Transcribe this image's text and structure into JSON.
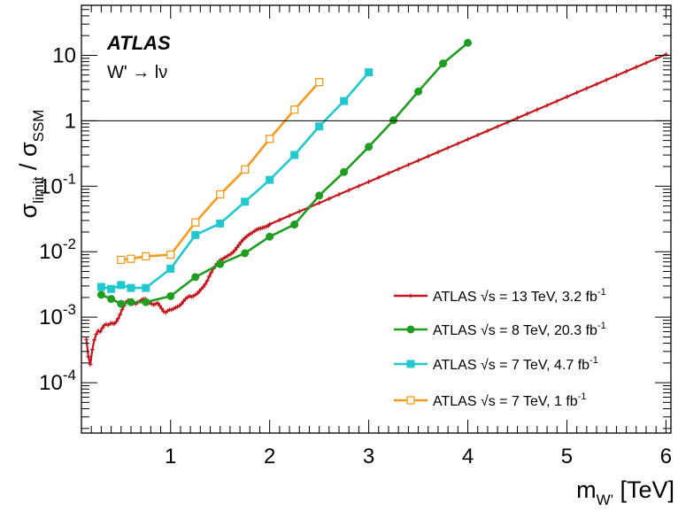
{
  "chart_data": {
    "type": "line",
    "xlabel": "m_W' [TeV]",
    "ylabel": "σ_limit / σ_SSM",
    "xlim": [
      0.1,
      6.05
    ],
    "ylim": [
      1.7e-05,
      58
    ],
    "yscale": "log",
    "grid": false,
    "legend_position": "lower-right",
    "annotations": {
      "experiment": "ATLAS",
      "process": "W' → lν"
    },
    "x_tick_labels": [
      "1",
      "2",
      "3",
      "4",
      "5",
      "6"
    ],
    "y_tick_labels": [
      {
        "mantissa": "10",
        "exp": "-4",
        "value": 0.0001
      },
      {
        "mantissa": "10",
        "exp": "-3",
        "value": 0.001
      },
      {
        "mantissa": "10",
        "exp": "-2",
        "value": 0.01
      },
      {
        "mantissa": "10",
        "exp": "-1",
        "value": 0.1
      },
      {
        "mantissa": "1",
        "exp": "",
        "value": 1
      },
      {
        "mantissa": "10",
        "exp": "",
        "value": 10
      }
    ],
    "reference_line": {
      "y": 1
    },
    "series": [
      {
        "legend_prefix": "ATLAS √s = 13 TeV, 3.2 fb",
        "legend_sup": "-1",
        "color": "#c4151c",
        "marker": "cross",
        "points": [
          [
            0.15,
            0.00046
          ],
          [
            0.17,
            0.00025
          ],
          [
            0.19,
            0.00019
          ],
          [
            0.21,
            0.00032
          ],
          [
            0.23,
            0.00045
          ],
          [
            0.25,
            0.00055
          ],
          [
            0.27,
            0.00062
          ],
          [
            0.29,
            0.0006
          ],
          [
            0.31,
            0.00068
          ],
          [
            0.33,
            0.00075
          ],
          [
            0.35,
            0.00078
          ],
          [
            0.37,
            0.00076
          ],
          [
            0.39,
            0.0008
          ],
          [
            0.41,
            0.00081
          ],
          [
            0.43,
            0.00079
          ],
          [
            0.45,
            0.00085
          ],
          [
            0.47,
            0.00095
          ],
          [
            0.49,
            0.0011
          ],
          [
            0.51,
            0.0013
          ],
          [
            0.53,
            0.0015
          ],
          [
            0.55,
            0.0017
          ],
          [
            0.57,
            0.0018
          ],
          [
            0.59,
            0.00175
          ],
          [
            0.61,
            0.0017
          ],
          [
            0.63,
            0.00165
          ],
          [
            0.65,
            0.0016
          ],
          [
            0.67,
            0.0017
          ],
          [
            0.69,
            0.00175
          ],
          [
            0.71,
            0.00185
          ],
          [
            0.73,
            0.0019
          ],
          [
            0.75,
            0.00188
          ],
          [
            0.77,
            0.00175
          ],
          [
            0.79,
            0.00165
          ],
          [
            0.81,
            0.0016
          ],
          [
            0.83,
            0.00155
          ],
          [
            0.85,
            0.0016
          ],
          [
            0.87,
            0.00165
          ],
          [
            0.89,
            0.0015
          ],
          [
            0.91,
            0.00135
          ],
          [
            0.93,
            0.00122
          ],
          [
            0.95,
            0.00118
          ],
          [
            0.97,
            0.00125
          ],
          [
            0.99,
            0.0013
          ],
          [
            1.01,
            0.0013
          ],
          [
            1.03,
            0.00135
          ],
          [
            1.05,
            0.0014
          ],
          [
            1.07,
            0.00145
          ],
          [
            1.09,
            0.0015
          ],
          [
            1.11,
            0.0016
          ],
          [
            1.13,
            0.00175
          ],
          [
            1.15,
            0.0019
          ],
          [
            1.17,
            0.002
          ],
          [
            1.19,
            0.0021
          ],
          [
            1.21,
            0.00205
          ],
          [
            1.23,
            0.0021
          ],
          [
            1.25,
            0.0022
          ],
          [
            1.27,
            0.0023
          ],
          [
            1.29,
            0.0025
          ],
          [
            1.31,
            0.0027
          ],
          [
            1.33,
            0.0029
          ],
          [
            1.35,
            0.0032
          ],
          [
            1.37,
            0.0036
          ],
          [
            1.39,
            0.0042
          ],
          [
            1.41,
            0.0048
          ],
          [
            1.43,
            0.0055
          ],
          [
            1.45,
            0.006
          ],
          [
            1.47,
            0.0066
          ],
          [
            1.49,
            0.0072
          ],
          [
            1.51,
            0.0075
          ],
          [
            1.53,
            0.0078
          ],
          [
            1.55,
            0.0082
          ],
          [
            1.57,
            0.0085
          ],
          [
            1.59,
            0.0089
          ],
          [
            1.61,
            0.0093
          ],
          [
            1.63,
            0.0098
          ],
          [
            1.65,
            0.0106
          ],
          [
            1.67,
            0.0116
          ],
          [
            1.69,
            0.0127
          ],
          [
            1.71,
            0.014
          ],
          [
            1.73,
            0.0152
          ],
          [
            1.75,
            0.0162
          ],
          [
            1.77,
            0.0172
          ],
          [
            1.79,
            0.0182
          ],
          [
            1.81,
            0.019
          ],
          [
            1.83,
            0.0198
          ],
          [
            1.85,
            0.0208
          ],
          [
            1.87,
            0.0218
          ],
          [
            1.89,
            0.0224
          ],
          [
            1.91,
            0.0228
          ],
          [
            1.93,
            0.0232
          ],
          [
            1.95,
            0.0238
          ],
          [
            1.97,
            0.0244
          ],
          [
            1.99,
            0.0252
          ],
          [
            2.0,
            0.0262
          ],
          [
            2.1,
            0.0305
          ],
          [
            2.2,
            0.0355
          ],
          [
            2.3,
            0.0412
          ],
          [
            2.4,
            0.0478
          ],
          [
            2.5,
            0.0555
          ],
          [
            2.6,
            0.0645
          ],
          [
            2.7,
            0.075
          ],
          [
            2.8,
            0.087
          ],
          [
            2.9,
            0.101
          ],
          [
            3.0,
            0.117
          ],
          [
            3.1,
            0.136
          ],
          [
            3.2,
            0.158
          ],
          [
            3.3,
            0.183
          ],
          [
            3.4,
            0.213
          ],
          [
            3.5,
            0.247
          ],
          [
            3.6,
            0.287
          ],
          [
            3.7,
            0.333
          ],
          [
            3.8,
            0.387
          ],
          [
            3.9,
            0.449
          ],
          [
            4.0,
            0.521
          ],
          [
            4.1,
            0.605
          ],
          [
            4.2,
            0.703
          ],
          [
            4.3,
            0.816
          ],
          [
            4.4,
            0.948
          ],
          [
            4.5,
            1.1
          ],
          [
            4.6,
            1.28
          ],
          [
            4.7,
            1.48
          ],
          [
            4.8,
            1.72
          ],
          [
            4.9,
            2.0
          ],
          [
            5.0,
            2.32
          ],
          [
            5.1,
            2.7
          ],
          [
            5.2,
            3.13
          ],
          [
            5.3,
            3.63
          ],
          [
            5.4,
            4.22
          ],
          [
            5.5,
            4.9
          ],
          [
            5.6,
            5.69
          ],
          [
            5.7,
            6.61
          ],
          [
            5.8,
            7.67
          ],
          [
            5.9,
            8.91
          ],
          [
            6.0,
            10.35
          ]
        ]
      },
      {
        "legend_prefix": "ATLAS √s = 8 TeV, 20.3 fb",
        "legend_sup": "-1",
        "color": "#1e9d21",
        "marker": "circle",
        "points": [
          [
            0.3,
            0.0022
          ],
          [
            0.4,
            0.0019
          ],
          [
            0.5,
            0.0016
          ],
          [
            0.6,
            0.0017
          ],
          [
            0.75,
            0.0017
          ],
          [
            1.0,
            0.0021
          ],
          [
            1.25,
            0.0041
          ],
          [
            1.5,
            0.0065
          ],
          [
            1.75,
            0.0095
          ],
          [
            2.0,
            0.017
          ],
          [
            2.25,
            0.026
          ],
          [
            2.5,
            0.072
          ],
          [
            2.75,
            0.165
          ],
          [
            3.0,
            0.4
          ],
          [
            3.25,
            1.02
          ],
          [
            3.5,
            2.8
          ],
          [
            3.75,
            7.5
          ],
          [
            4.0,
            15.5
          ]
        ]
      },
      {
        "legend_prefix": "ATLAS √s = 7 TeV, 4.7 fb",
        "legend_sup": "-1",
        "color": "#22c8cf",
        "marker": "square",
        "points": [
          [
            0.3,
            0.0029
          ],
          [
            0.4,
            0.0027
          ],
          [
            0.5,
            0.0031
          ],
          [
            0.6,
            0.0028
          ],
          [
            0.75,
            0.0028
          ],
          [
            1.0,
            0.0055
          ],
          [
            1.25,
            0.018
          ],
          [
            1.5,
            0.027
          ],
          [
            1.75,
            0.058
          ],
          [
            2.0,
            0.125
          ],
          [
            2.25,
            0.3
          ],
          [
            2.5,
            0.82
          ],
          [
            2.75,
            2.0
          ],
          [
            3.0,
            5.5
          ]
        ]
      },
      {
        "legend_prefix": "ATLAS √s = 7 TeV, 1 fb",
        "legend_sup": "-1",
        "color": "#f7991c",
        "marker": "open-square",
        "points": [
          [
            0.5,
            0.0075
          ],
          [
            0.6,
            0.0078
          ],
          [
            0.75,
            0.0085
          ],
          [
            1.0,
            0.009
          ],
          [
            1.25,
            0.028
          ],
          [
            1.5,
            0.075
          ],
          [
            1.75,
            0.18
          ],
          [
            2.0,
            0.53
          ],
          [
            2.25,
            1.48
          ],
          [
            2.5,
            3.9
          ]
        ]
      }
    ]
  }
}
